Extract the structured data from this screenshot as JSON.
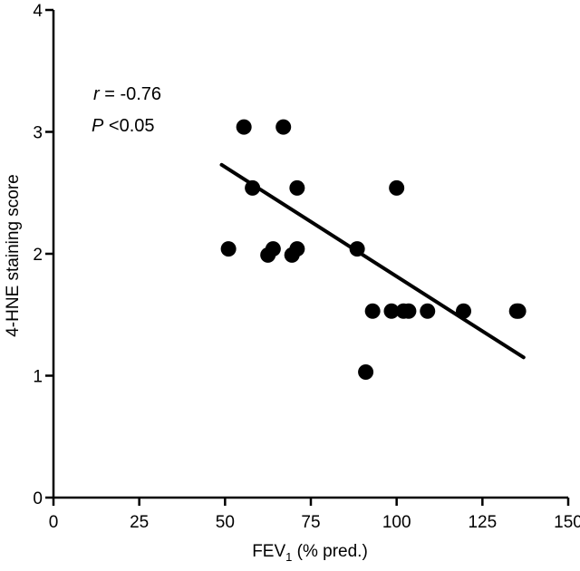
{
  "chart_data": {
    "type": "scatter",
    "xlabel": "FEV",
    "xlabel_subscript": "1",
    "xlabel_suffix": " (% pred.)",
    "ylabel": "4-HNE staining score",
    "xlim": [
      0,
      150
    ],
    "ylim": [
      0,
      4
    ],
    "xticks": [
      0,
      25,
      50,
      75,
      100,
      125,
      150
    ],
    "yticks": [
      0,
      1,
      2,
      3,
      4
    ],
    "grid": false,
    "annotations": {
      "r_symbol": "r",
      "r_value": " = -0.76",
      "p_symbol": "P",
      "p_value": " <0.05"
    },
    "points": [
      {
        "x": 51,
        "y": 2.04
      },
      {
        "x": 55.5,
        "y": 3.04
      },
      {
        "x": 58,
        "y": 2.54
      },
      {
        "x": 62.5,
        "y": 1.99
      },
      {
        "x": 64,
        "y": 2.04
      },
      {
        "x": 67,
        "y": 3.04
      },
      {
        "x": 69.5,
        "y": 1.99
      },
      {
        "x": 71,
        "y": 2.04
      },
      {
        "x": 71,
        "y": 2.54
      },
      {
        "x": 88.5,
        "y": 2.04
      },
      {
        "x": 91,
        "y": 1.03
      },
      {
        "x": 93,
        "y": 1.53
      },
      {
        "x": 98.5,
        "y": 1.53
      },
      {
        "x": 100,
        "y": 2.54
      },
      {
        "x": 102,
        "y": 1.53
      },
      {
        "x": 103.5,
        "y": 1.53
      },
      {
        "x": 109,
        "y": 1.53
      },
      {
        "x": 119.5,
        "y": 1.53
      },
      {
        "x": 135,
        "y": 1.53
      },
      {
        "x": 135.5,
        "y": 1.53
      }
    ],
    "fit_line": {
      "x": [
        49,
        137
      ],
      "y": [
        2.73,
        1.15
      ]
    }
  }
}
